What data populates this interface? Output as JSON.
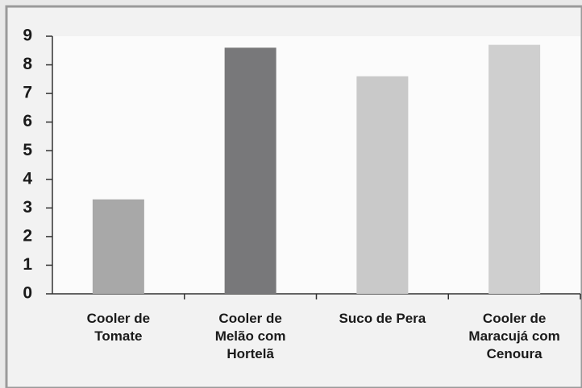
{
  "chart_data": {
    "type": "bar",
    "categories": [
      "Cooler de\nTomate",
      "Cooler de\nMelão com\nHortelã",
      "Suco de Pera",
      "Cooler de\nMaracujá com\nCenoura"
    ],
    "values": [
      3.3,
      8.6,
      7.6,
      8.7
    ],
    "colors": [
      "#a8a8a8",
      "#78787a",
      "#c9c9c9",
      "#cfcfcf"
    ],
    "ylim": [
      0,
      9
    ],
    "yticks": [
      0,
      1,
      2,
      3,
      4,
      5,
      6,
      7,
      8,
      9
    ],
    "grid": false
  }
}
